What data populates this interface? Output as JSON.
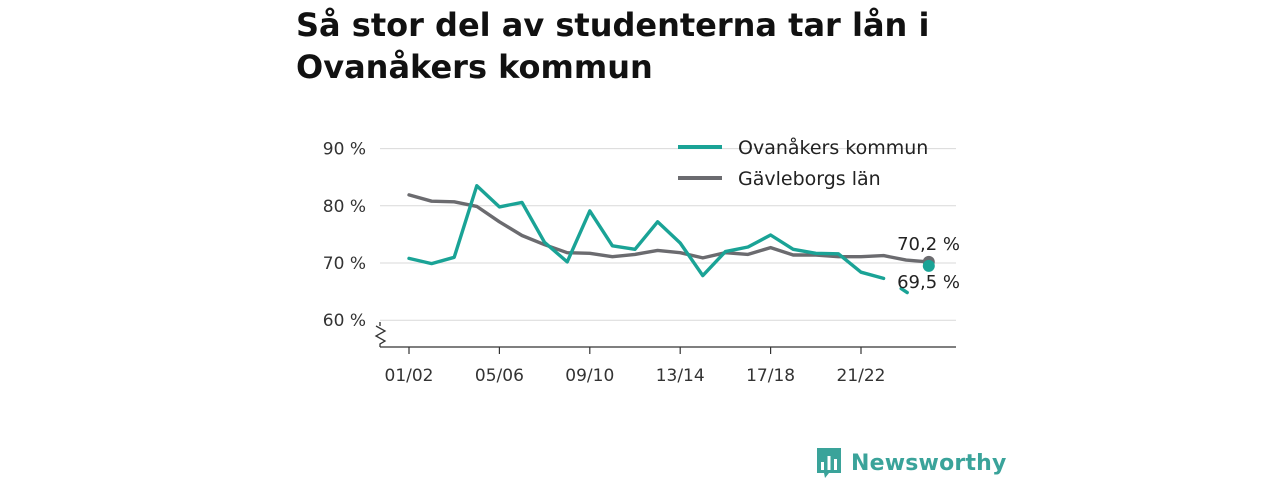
{
  "title": "Så stor del av studenterna tar lån i Ovanåkers kommun",
  "brand": {
    "name": "Newsworthy",
    "icon": "newsworthy-logo-icon",
    "color": "#3aa39a"
  },
  "chart_data": {
    "type": "line",
    "title": "Så stor del av studenterna tar lån i Ovanåkers kommun",
    "xlabel": "",
    "ylabel": "",
    "ylim": [
      55,
      90
    ],
    "y_axis_break": true,
    "yticks": [
      60,
      70,
      80,
      90
    ],
    "ytick_labels": [
      "60 %",
      "70 %",
      "80 %",
      "90 %"
    ],
    "x_tick_labels": [
      "01/02",
      "05/06",
      "09/10",
      "13/14",
      "17/18",
      "21/22"
    ],
    "x_tick_indices": [
      0,
      4,
      8,
      12,
      16,
      20
    ],
    "x_count": 24,
    "grid": "horizontal",
    "legend_position": "top-right",
    "series": [
      {
        "name": "Ovanåkers kommun",
        "color": "#1aa396",
        "values": [
          70.8,
          69.9,
          71.0,
          83.5,
          79.8,
          80.6,
          73.6,
          70.2,
          79.1,
          73.0,
          72.4,
          77.2,
          73.5,
          67.8,
          72.0,
          72.8,
          74.9,
          72.4,
          71.7,
          71.6,
          68.4,
          67.3,
          65.0,
          69.5
        ],
        "gaps": [
          22
        ],
        "end_label": "69,5 %"
      },
      {
        "name": "Gävleborgs län",
        "color": "#6b6b6f",
        "values": [
          81.9,
          80.8,
          80.7,
          79.9,
          77.2,
          74.8,
          73.2,
          71.8,
          71.7,
          71.1,
          71.5,
          72.2,
          71.8,
          70.9,
          71.8,
          71.5,
          72.7,
          71.4,
          71.4,
          71.1,
          71.1,
          71.3,
          70.5,
          70.2
        ],
        "end_label": "70,2 %"
      }
    ]
  }
}
